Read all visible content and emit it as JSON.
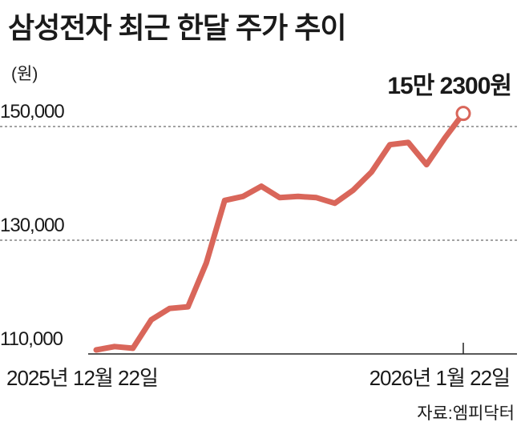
{
  "chart_data": {
    "type": "line",
    "title": "삼성전자 최근 한달 주가 추이",
    "unit_label": "(원)",
    "yticks": [
      "150,000",
      "130,000",
      "110,000"
    ],
    "ytick_values": [
      150000,
      130000,
      110000
    ],
    "ylim": [
      108000,
      152000
    ],
    "grid": "dashed horizontal",
    "x_start_label": "2025년 12월 22일",
    "x_end_label": "2026년 1월 22일",
    "last_value_label": "15만 2300원",
    "series": [
      {
        "values": [
          110700,
          111300,
          111000,
          116000,
          118000,
          118300,
          126000,
          137000,
          137700,
          139500,
          137500,
          137700,
          137500,
          136500,
          138800,
          142000,
          146800,
          147200,
          143300,
          148000,
          152300
        ]
      }
    ],
    "line_color": "#d9665a"
  },
  "source": "자료:엠피닥터"
}
